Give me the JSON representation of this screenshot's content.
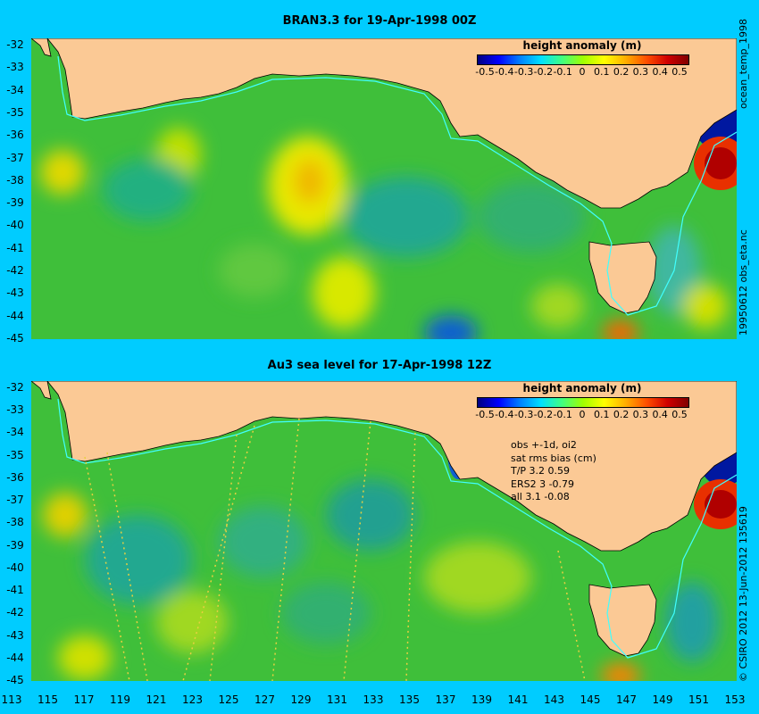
{
  "panels": [
    {
      "title": "BRAN3.3 for 19-Apr-1998 00Z",
      "legend_title": "height anomaly (m)",
      "side_label": "19950612 obs_eta.nc",
      "top_right_label": "ocean_temp_1998"
    },
    {
      "title": "Au3 sea level  for 17-Apr-1998 12Z",
      "legend_title": "height anomaly (m)",
      "side_label": "© CSIRO 2012  13-Jun-2012 135619",
      "stats": [
        "obs +-1d, oi2",
        "sat rms bias (cm)",
        "T/P  3.2 0.59",
        "ERS2 3 -0.79",
        "all 3.1 -0.08"
      ]
    }
  ],
  "colorbar_ticks": [
    "-0.5",
    "-0.4",
    "-0.3",
    "-0.2",
    "-0.1",
    "0",
    "0.1",
    "0.2",
    "0.3",
    "0.4",
    "0.5"
  ],
  "y_ticks": [
    "-32",
    "-33",
    "-34",
    "-35",
    "-36",
    "-37",
    "-38",
    "-39",
    "-40",
    "-41",
    "-42",
    "-43",
    "-44",
    "-45"
  ],
  "x_ticks": [
    "113",
    "115",
    "117",
    "119",
    "121",
    "123",
    "125",
    "127",
    "129",
    "131",
    "133",
    "135",
    "137",
    "139",
    "141",
    "143",
    "145",
    "147",
    "149",
    "151",
    "153"
  ],
  "colors": {
    "background": "#00ccff",
    "land": "#fbc995",
    "ocean_base": "#3fbf3a",
    "contour_line": "#40ffff"
  }
}
